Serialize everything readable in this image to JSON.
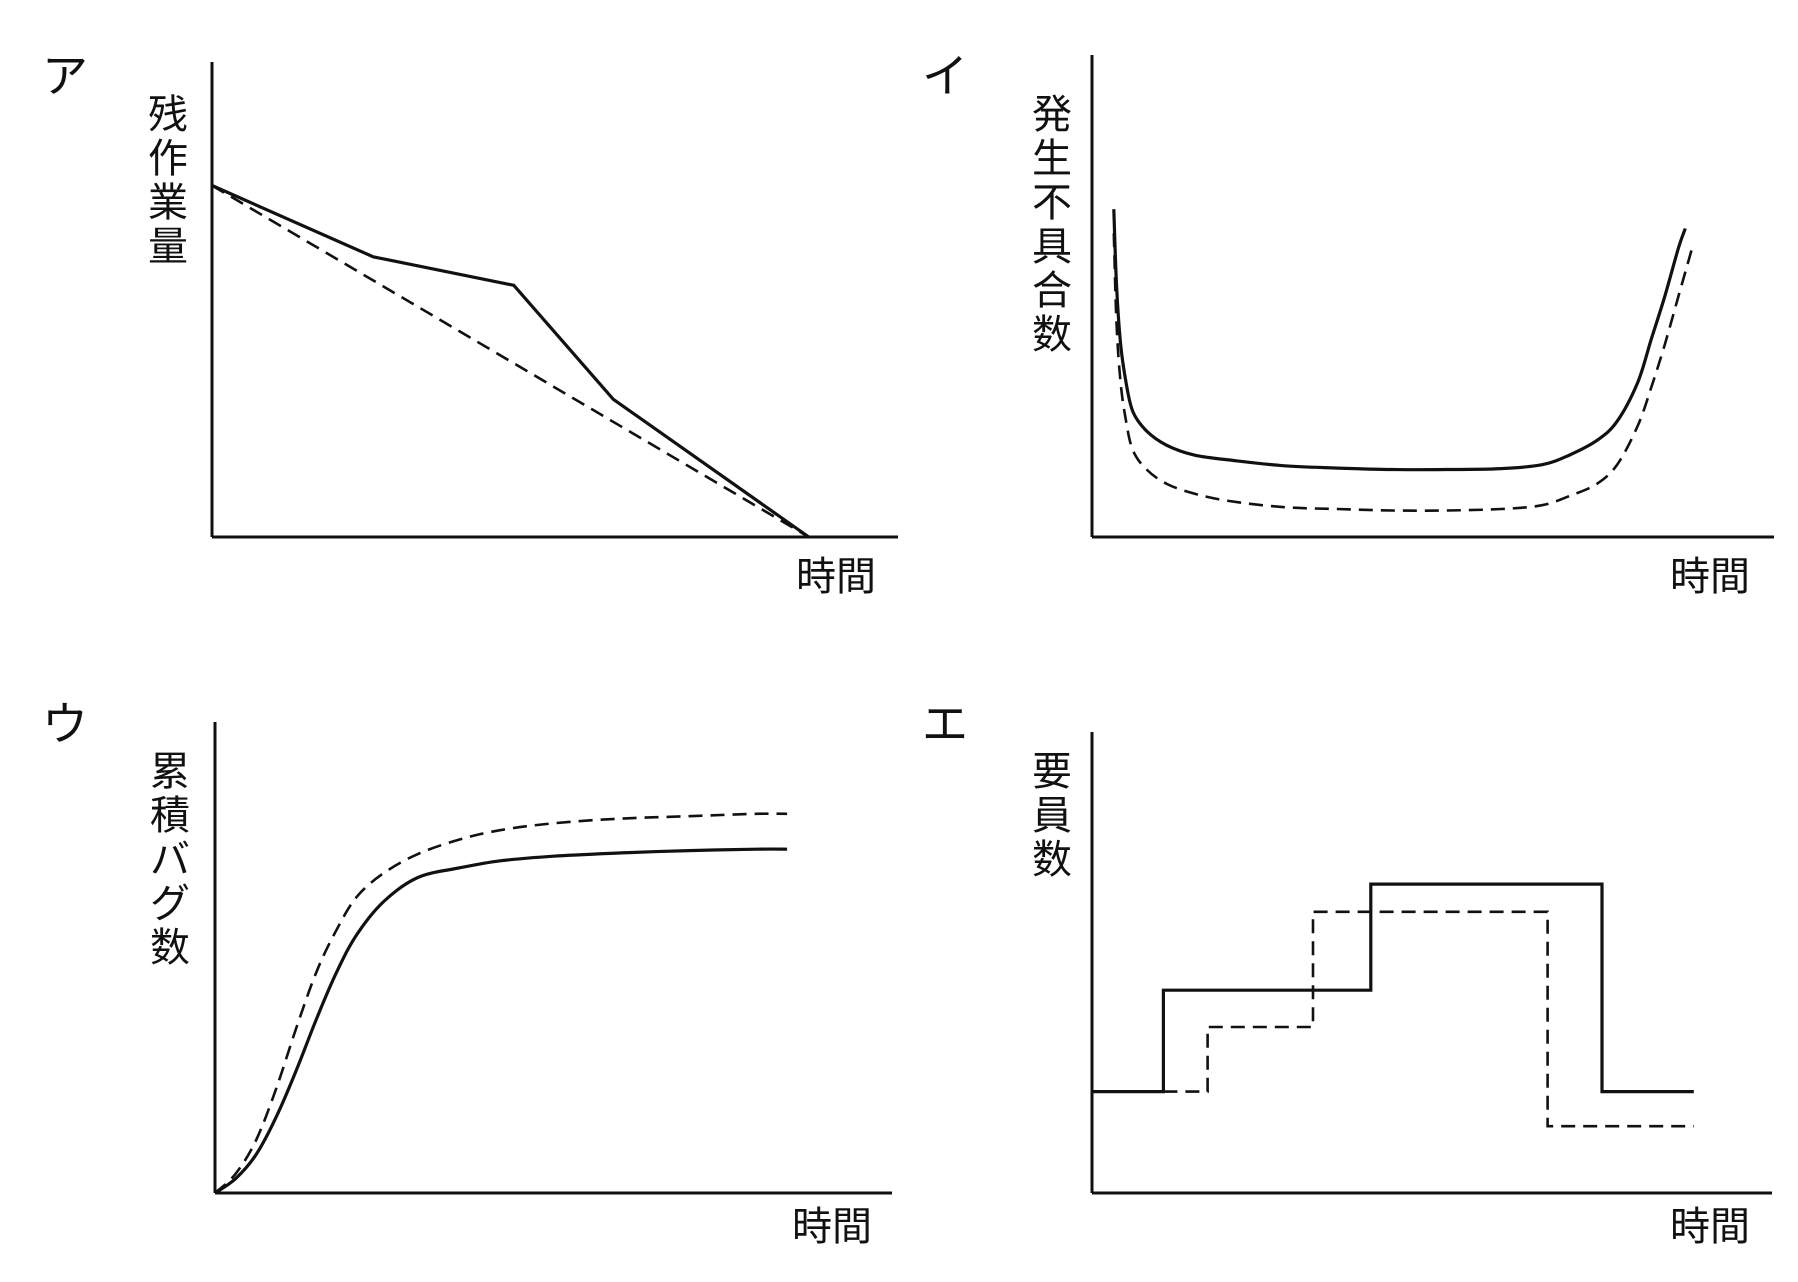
{
  "chart_data": [
    {
      "id": "a",
      "panel_label": "ア",
      "type": "line",
      "ylabel": "残作業量",
      "xlabel": "時間",
      "xlim": [
        0,
        1
      ],
      "ylim": [
        0,
        1
      ],
      "grid": false,
      "series": [
        {
          "style": "solid",
          "x": [
            0,
            0.235,
            0.44,
            0.585,
            0.87
          ],
          "y": [
            0.74,
            0.59,
            0.53,
            0.29,
            0.0
          ]
        },
        {
          "style": "dashed",
          "x": [
            0,
            0.87
          ],
          "y": [
            0.74,
            0.0
          ]
        }
      ]
    },
    {
      "id": "i",
      "panel_label": "イ",
      "type": "line",
      "ylabel": "発生不具合数",
      "xlabel": "時間",
      "xlim": [
        0,
        1
      ],
      "ylim": [
        0,
        1
      ],
      "grid": false,
      "series": [
        {
          "style": "solid",
          "x": [
            0.032,
            0.036,
            0.042,
            0.05,
            0.06,
            0.08,
            0.11,
            0.15,
            0.2,
            0.28,
            0.36,
            0.44,
            0.52,
            0.6,
            0.66,
            0.7,
            0.74,
            0.77,
            0.8,
            0.82,
            0.84,
            0.86,
            0.87
          ],
          "y": [
            0.68,
            0.52,
            0.4,
            0.32,
            0.26,
            0.22,
            0.19,
            0.17,
            0.16,
            0.148,
            0.143,
            0.14,
            0.14,
            0.142,
            0.15,
            0.17,
            0.2,
            0.24,
            0.32,
            0.41,
            0.5,
            0.6,
            0.64
          ]
        },
        {
          "style": "dashed",
          "x": [
            0.032,
            0.036,
            0.042,
            0.05,
            0.06,
            0.08,
            0.11,
            0.15,
            0.2,
            0.28,
            0.36,
            0.44,
            0.52,
            0.6,
            0.66,
            0.7,
            0.74,
            0.77,
            0.8,
            0.82,
            0.84,
            0.86,
            0.88
          ],
          "y": [
            0.63,
            0.44,
            0.32,
            0.24,
            0.18,
            0.14,
            0.11,
            0.09,
            0.075,
            0.062,
            0.058,
            0.055,
            0.055,
            0.058,
            0.066,
            0.085,
            0.11,
            0.15,
            0.23,
            0.31,
            0.4,
            0.5,
            0.6
          ]
        }
      ]
    },
    {
      "id": "u",
      "panel_label": "ウ",
      "type": "line",
      "ylabel": "累積バグ数",
      "xlabel": "時間",
      "xlim": [
        0,
        1
      ],
      "ylim": [
        0,
        1
      ],
      "grid": false,
      "series": [
        {
          "style": "solid",
          "x": [
            0,
            0.03,
            0.06,
            0.09,
            0.12,
            0.15,
            0.18,
            0.21,
            0.25,
            0.3,
            0.36,
            0.42,
            0.5,
            0.6,
            0.7,
            0.8,
            0.845
          ],
          "y": [
            0,
            0.03,
            0.08,
            0.16,
            0.26,
            0.37,
            0.47,
            0.55,
            0.62,
            0.67,
            0.69,
            0.705,
            0.715,
            0.722,
            0.727,
            0.73,
            0.73
          ]
        },
        {
          "style": "dashed",
          "x": [
            0,
            0.03,
            0.06,
            0.09,
            0.12,
            0.15,
            0.18,
            0.21,
            0.25,
            0.3,
            0.36,
            0.42,
            0.5,
            0.6,
            0.7,
            0.8,
            0.845
          ],
          "y": [
            0,
            0.04,
            0.11,
            0.22,
            0.35,
            0.47,
            0.56,
            0.63,
            0.68,
            0.72,
            0.75,
            0.77,
            0.785,
            0.795,
            0.8,
            0.805,
            0.805
          ]
        }
      ]
    },
    {
      "id": "e",
      "panel_label": "エ",
      "type": "line",
      "ylabel": "要員数",
      "xlabel": "時間",
      "xlim": [
        0,
        1
      ],
      "ylim": [
        0,
        1
      ],
      "grid": false,
      "series": [
        {
          "style": "solid",
          "step": true,
          "x": [
            0,
            0.105,
            0.105,
            0.41,
            0.41,
            0.75,
            0.75,
            0.885
          ],
          "y": [
            0.22,
            0.22,
            0.44,
            0.44,
            0.67,
            0.67,
            0.22,
            0.22
          ]
        },
        {
          "style": "dashed",
          "step": true,
          "x": [
            0.105,
            0.17,
            0.17,
            0.325,
            0.325,
            0.67,
            0.67,
            0.885
          ],
          "y": [
            0.22,
            0.22,
            0.36,
            0.36,
            0.61,
            0.61,
            0.145,
            0.145
          ]
        }
      ]
    }
  ]
}
